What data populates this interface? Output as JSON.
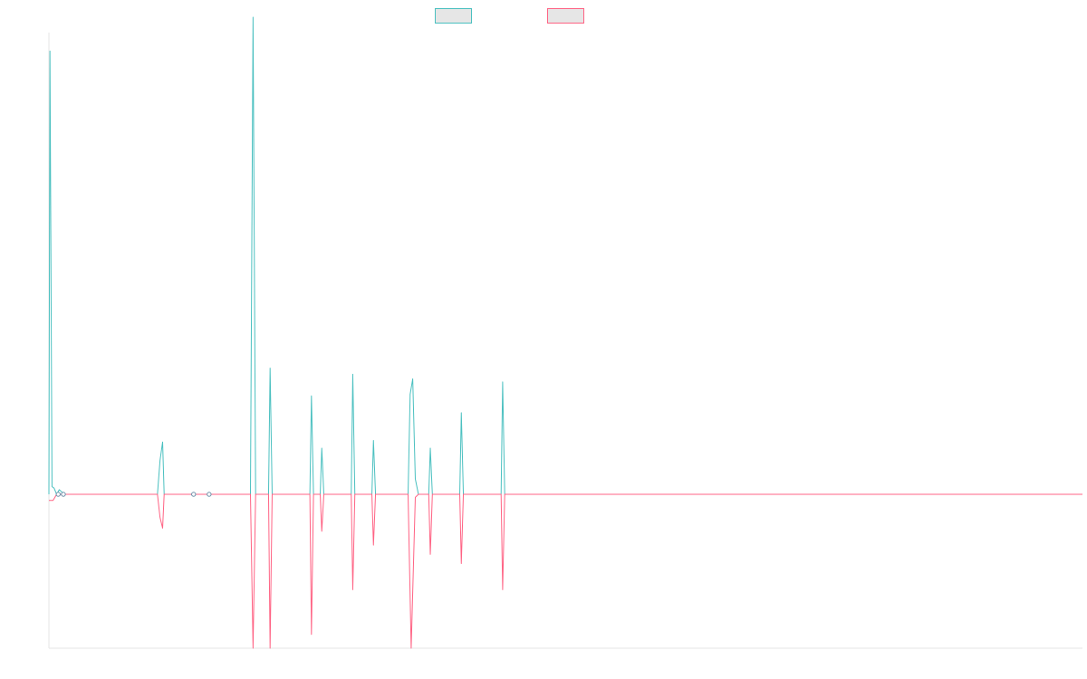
{
  "colors": {
    "background": "#ffffff",
    "axis": "#e6e6e6",
    "legend_fill": "#e6e6e6"
  },
  "chart_data": {
    "type": "line",
    "title": "",
    "xlabel": "",
    "ylabel": "",
    "grid": false,
    "legend_placement": "top-center",
    "xlim": [
      0,
      200
    ],
    "ylim": [
      -100,
      300
    ],
    "series": [
      {
        "name": "",
        "color": "#4bc0c0",
        "points": [
          [
            0,
            0
          ],
          [
            0.2,
            288
          ],
          [
            0.6,
            5
          ],
          [
            1,
            4
          ],
          [
            1.5,
            0
          ],
          [
            2,
            3
          ],
          [
            3,
            0
          ],
          [
            21,
            0
          ],
          [
            21.5,
            22
          ],
          [
            22,
            34
          ],
          [
            22.3,
            0
          ],
          [
            28,
            0
          ],
          [
            31,
            0
          ],
          [
            39,
            0
          ],
          [
            39.5,
            310
          ],
          [
            40,
            0
          ],
          [
            42.5,
            0
          ],
          [
            42.8,
            82
          ],
          [
            43.2,
            0
          ],
          [
            50.5,
            0
          ],
          [
            50.8,
            64
          ],
          [
            51.2,
            0
          ],
          [
            52.5,
            0
          ],
          [
            52.8,
            30
          ],
          [
            53.2,
            0
          ],
          [
            58.5,
            0
          ],
          [
            58.8,
            78
          ],
          [
            59.2,
            0
          ],
          [
            62.5,
            0
          ],
          [
            62.8,
            35
          ],
          [
            63.2,
            0
          ],
          [
            69.5,
            0
          ],
          [
            69.9,
            65
          ],
          [
            70.4,
            75
          ],
          [
            70.9,
            10
          ],
          [
            71.5,
            0
          ],
          [
            73.5,
            0
          ],
          [
            73.8,
            30
          ],
          [
            74.2,
            0
          ],
          [
            79.5,
            0
          ],
          [
            79.8,
            53
          ],
          [
            80.2,
            0
          ],
          [
            87.5,
            0
          ],
          [
            87.8,
            73
          ],
          [
            88.2,
            0
          ],
          [
            200,
            0
          ]
        ]
      },
      {
        "name": "",
        "color": "#ff6384",
        "points": [
          [
            0,
            -4
          ],
          [
            0.8,
            -4
          ],
          [
            1.5,
            0
          ],
          [
            3,
            0
          ],
          [
            21,
            0
          ],
          [
            21.5,
            -15
          ],
          [
            22,
            -22
          ],
          [
            22.3,
            0
          ],
          [
            39,
            0
          ],
          [
            39.5,
            -100
          ],
          [
            40,
            0
          ],
          [
            42.5,
            0
          ],
          [
            42.8,
            -100
          ],
          [
            43.2,
            0
          ],
          [
            50.5,
            0
          ],
          [
            50.8,
            -91
          ],
          [
            51.2,
            0
          ],
          [
            52.5,
            0
          ],
          [
            52.8,
            -24
          ],
          [
            53.2,
            0
          ],
          [
            58.5,
            0
          ],
          [
            58.8,
            -62
          ],
          [
            59.2,
            0
          ],
          [
            62.5,
            0
          ],
          [
            62.8,
            -33
          ],
          [
            63.2,
            0
          ],
          [
            69.5,
            0
          ],
          [
            70.1,
            -100
          ],
          [
            70.9,
            -2
          ],
          [
            71.5,
            0
          ],
          [
            73.5,
            0
          ],
          [
            73.8,
            -39
          ],
          [
            74.2,
            0
          ],
          [
            79.5,
            0
          ],
          [
            79.8,
            -45
          ],
          [
            80.2,
            0
          ],
          [
            87.5,
            0
          ],
          [
            87.8,
            -62
          ],
          [
            88.2,
            0
          ],
          [
            200,
            0
          ]
        ]
      }
    ],
    "markers": [
      {
        "x": 1.8,
        "y": 0
      },
      {
        "x": 2.8,
        "y": 0
      },
      {
        "x": 28,
        "y": 0
      },
      {
        "x": 31,
        "y": 0
      }
    ]
  }
}
